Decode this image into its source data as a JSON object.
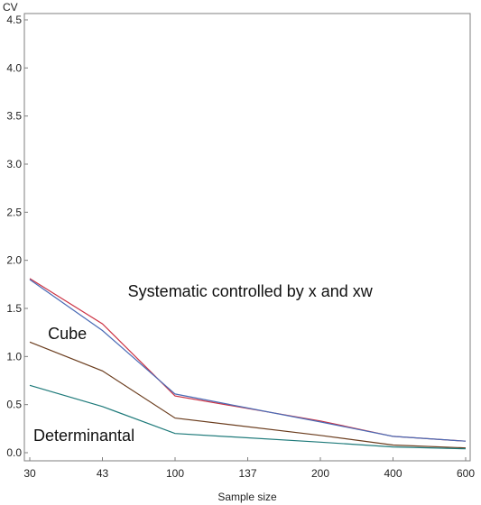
{
  "chart_data": {
    "type": "line",
    "ylabel": "CV",
    "xlabel": "Sample size",
    "categories": [
      "30",
      "43",
      "100",
      "137",
      "200",
      "400",
      "600"
    ],
    "ylim": [
      0,
      4.5
    ],
    "yticks": [
      "0.0",
      "0.5",
      "1.0",
      "1.5",
      "2.0",
      "2.5",
      "3.0",
      "3.5",
      "4.0",
      "4.5"
    ],
    "grid": false,
    "series": [
      {
        "color": "#cc3344",
        "points": [
          [
            0,
            1.81
          ],
          [
            1,
            1.34
          ],
          [
            2,
            0.59
          ],
          [
            4,
            0.33
          ],
          [
            5,
            0.17
          ],
          [
            6,
            0.12
          ]
        ]
      },
      {
        "color": "#4a6bb5",
        "points": [
          [
            0,
            1.8
          ],
          [
            1,
            1.27
          ],
          [
            2,
            0.61
          ],
          [
            4,
            0.32
          ],
          [
            5,
            0.17
          ],
          [
            6,
            0.12
          ]
        ]
      },
      {
        "color": "#6b3d1e",
        "points": [
          [
            0,
            1.15
          ],
          [
            1,
            0.85
          ],
          [
            2,
            0.36
          ],
          [
            4,
            0.18
          ],
          [
            5,
            0.08
          ],
          [
            6,
            0.05
          ]
        ]
      },
      {
        "color": "#1e7a7a",
        "points": [
          [
            0,
            0.7
          ],
          [
            1,
            0.48
          ],
          [
            2,
            0.2
          ],
          [
            4,
            0.11
          ],
          [
            5,
            0.06
          ],
          [
            6,
            0.04
          ]
        ]
      }
    ],
    "annotations": [
      {
        "text": "Systematic controlled by x and xw",
        "x": 1.35,
        "y": 1.62
      },
      {
        "text": "Cube",
        "x": 0.25,
        "y": 1.18
      },
      {
        "text": "Determinantal",
        "x": 0.05,
        "y": 0.12
      }
    ]
  }
}
